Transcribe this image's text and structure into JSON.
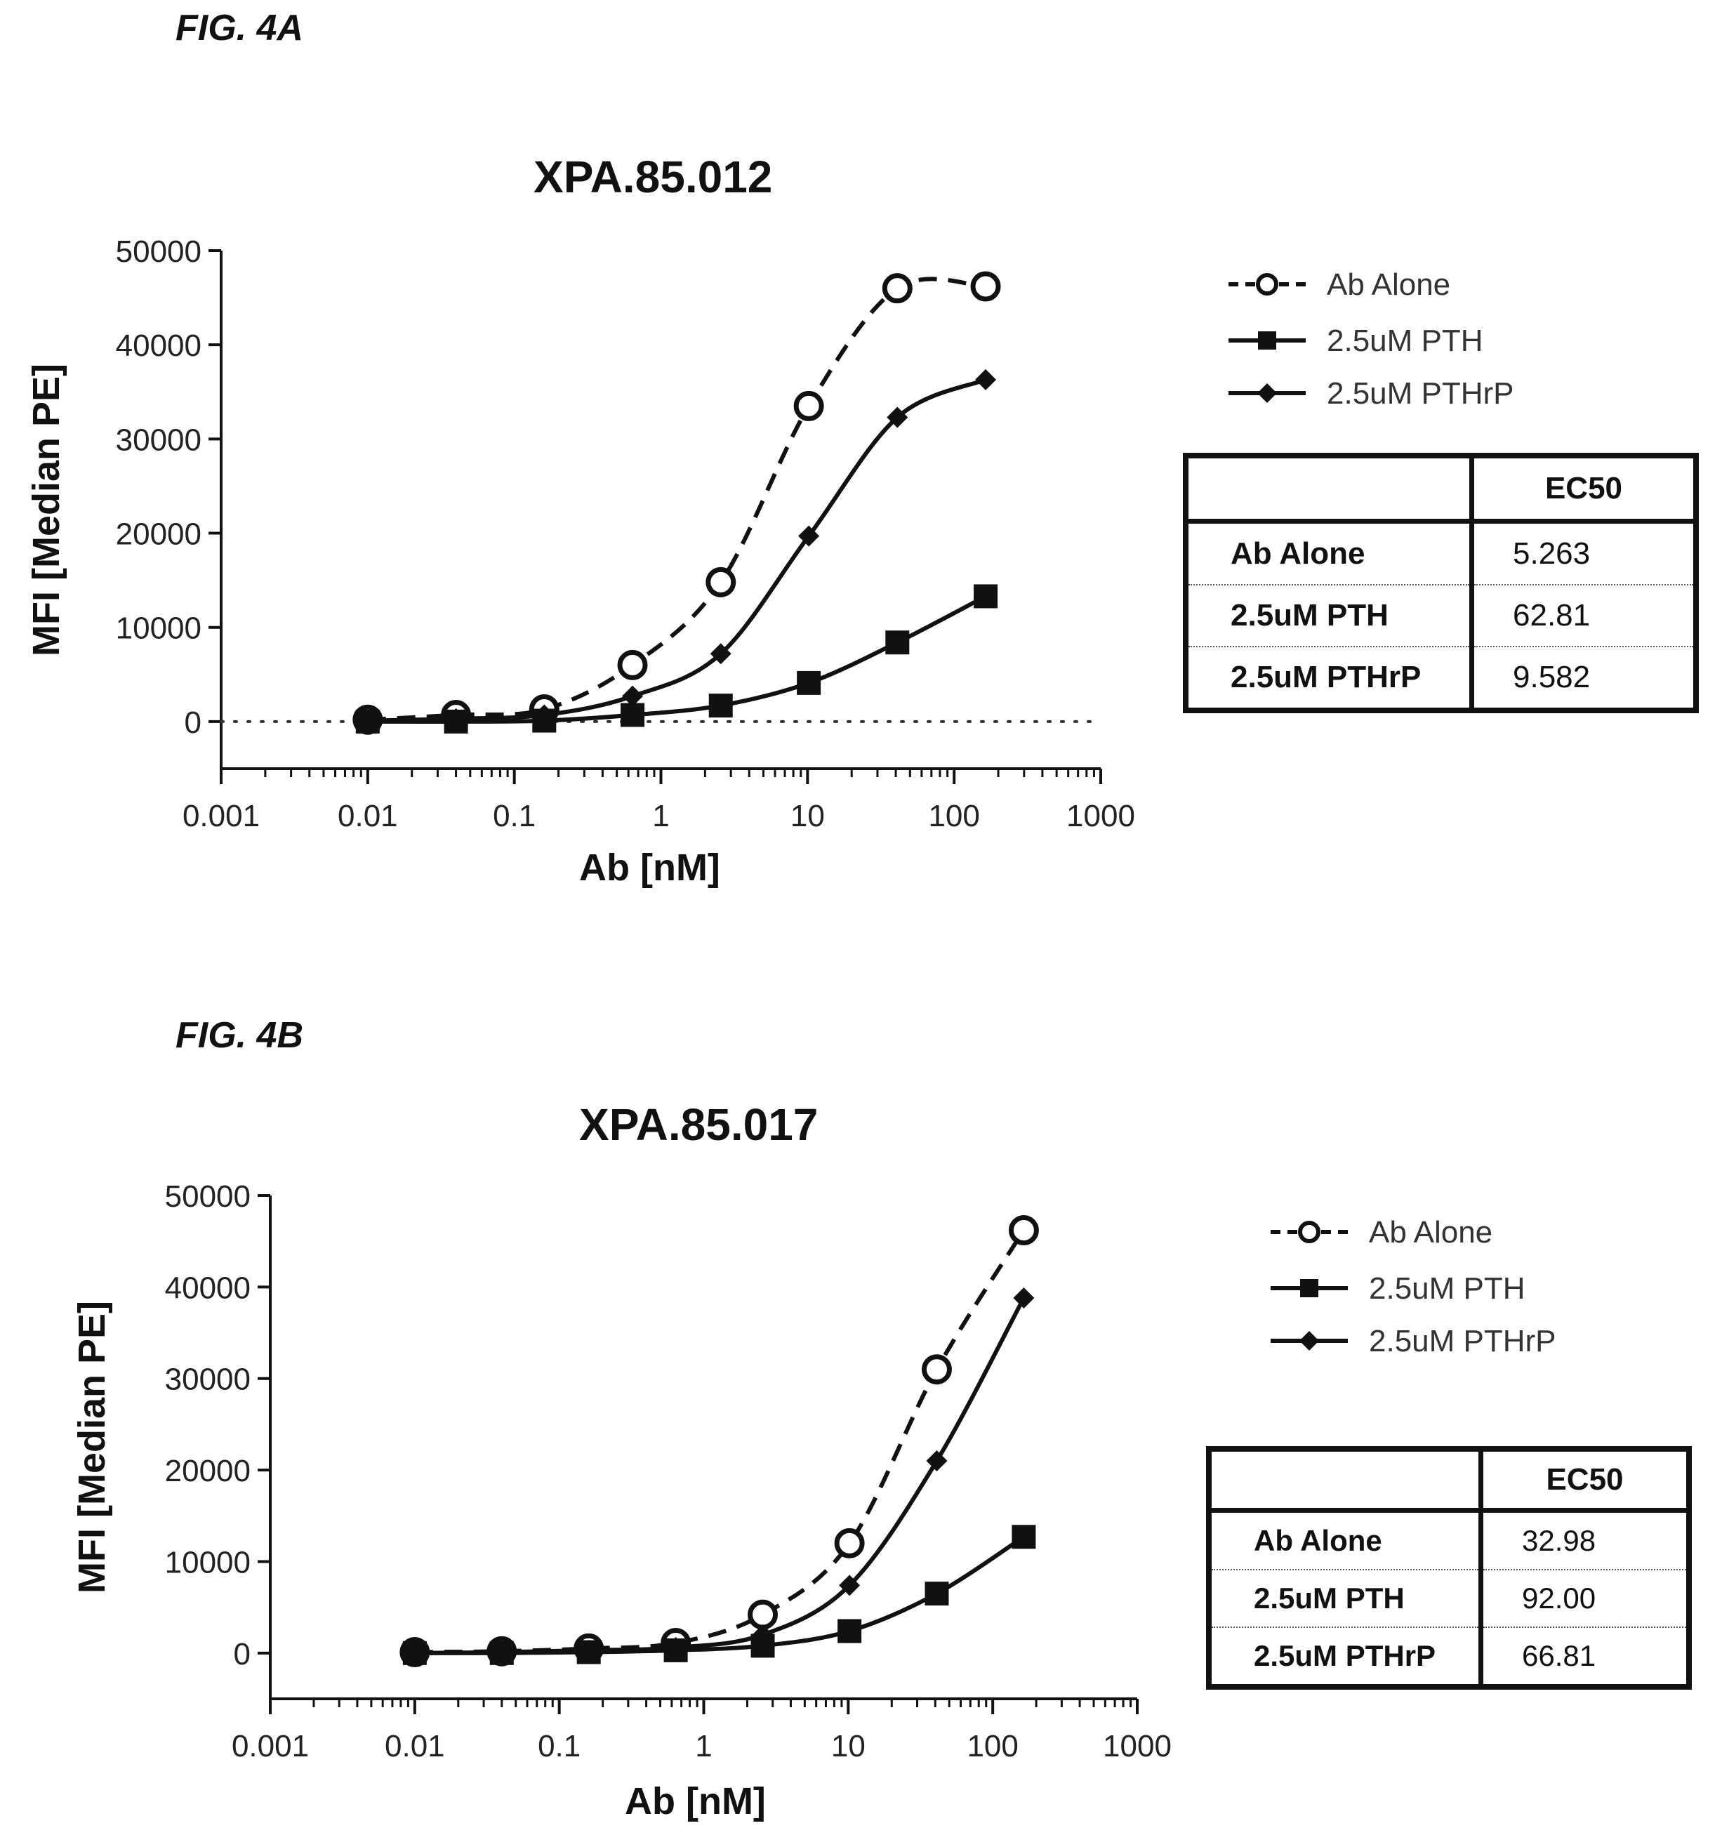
{
  "figures": [
    {
      "label": "FIG. 4A",
      "chart_data": {
        "type": "scatter",
        "title": "XPA.85.012",
        "xlabel": "Ab [nM]",
        "ylabel": "MFI [Median PE]",
        "xscale": "log",
        "xlim": [
          0.001,
          1000
        ],
        "ylim": [
          -5000,
          50000
        ],
        "x_ticks": [
          "0.001",
          "0.01",
          "0.1",
          "1",
          "10",
          "100",
          "1000"
        ],
        "y_ticks": [
          "0",
          "10000",
          "20000",
          "30000",
          "40000",
          "50000"
        ],
        "zero_line": "dotted",
        "grid": false,
        "legend_position": "right",
        "series": [
          {
            "name": "Ab Alone",
            "marker": "open-circle",
            "line": "dashed",
            "color": "#111111",
            "x": [
              0.01,
              0.04,
              0.16,
              0.64,
              2.56,
              10.2,
              41,
              164
            ],
            "y": [
              200,
              700,
              1300,
              6000,
              14800,
              33500,
              46000,
              46200
            ],
            "ec50": 5.263
          },
          {
            "name": "2.5uM PTH",
            "marker": "filled-square",
            "line": "solid",
            "color": "#111111",
            "x": [
              0.01,
              0.04,
              0.16,
              0.64,
              2.56,
              10.2,
              41,
              164
            ],
            "y": [
              0,
              0,
              100,
              700,
              1700,
              4100,
              8400,
              13300
            ],
            "ec50": 62.81
          },
          {
            "name": "2.5uM PTHrP",
            "marker": "filled-diamond",
            "line": "solid",
            "color": "#111111",
            "x": [
              0.01,
              0.04,
              0.16,
              0.64,
              2.56,
              10.2,
              41,
              164
            ],
            "y": [
              100,
              300,
              700,
              2700,
              7200,
              19700,
              32300,
              36300
            ],
            "ec50": 9.582
          }
        ]
      },
      "table": {
        "header": [
          "",
          "EC50"
        ],
        "rows": [
          [
            "Ab Alone",
            "5.263"
          ],
          [
            "2.5uM PTH",
            "62.81"
          ],
          [
            "2.5uM PTHrP",
            "9.582"
          ]
        ]
      }
    },
    {
      "label": "FIG. 4B",
      "chart_data": {
        "type": "scatter",
        "title": "XPA.85.017",
        "xlabel": "Ab [nM]",
        "ylabel": "MFI [Median PE]",
        "xscale": "log",
        "xlim": [
          0.001,
          1000
        ],
        "ylim": [
          -5000,
          50000
        ],
        "x_ticks": [
          "0.001",
          "0.01",
          "0.1",
          "1",
          "10",
          "100",
          "1000"
        ],
        "y_ticks": [
          "0",
          "10000",
          "20000",
          "30000",
          "40000",
          "50000"
        ],
        "zero_line": "none",
        "grid": false,
        "legend_position": "right",
        "series": [
          {
            "name": "Ab Alone",
            "marker": "open-circle",
            "line": "dashed",
            "color": "#111111",
            "x": [
              0.01,
              0.04,
              0.16,
              0.64,
              2.56,
              10.2,
              41,
              164
            ],
            "y": [
              100,
              200,
              500,
              1100,
              4200,
              12000,
              31000,
              46200
            ],
            "ec50": 32.98
          },
          {
            "name": "2.5uM PTH",
            "marker": "filled-square",
            "line": "solid",
            "color": "#111111",
            "x": [
              0.01,
              0.04,
              0.16,
              0.64,
              2.56,
              10.2,
              41,
              164
            ],
            "y": [
              0,
              0,
              100,
              300,
              800,
              2400,
              6500,
              12700
            ],
            "ec50": 92.0
          },
          {
            "name": "2.5uM PTHrP",
            "marker": "filled-diamond",
            "line": "solid",
            "color": "#111111",
            "x": [
              0.01,
              0.04,
              0.16,
              0.64,
              2.56,
              10.2,
              41,
              164
            ],
            "y": [
              0,
              100,
              300,
              600,
              2000,
              7400,
              21000,
              38800
            ],
            "ec50": 66.81
          }
        ]
      },
      "table": {
        "header": [
          "",
          "EC50"
        ],
        "rows": [
          [
            "Ab Alone",
            "32.98"
          ],
          [
            "2.5uM PTH",
            "92.00"
          ],
          [
            "2.5uM PTHrP",
            "66.81"
          ]
        ]
      }
    }
  ]
}
